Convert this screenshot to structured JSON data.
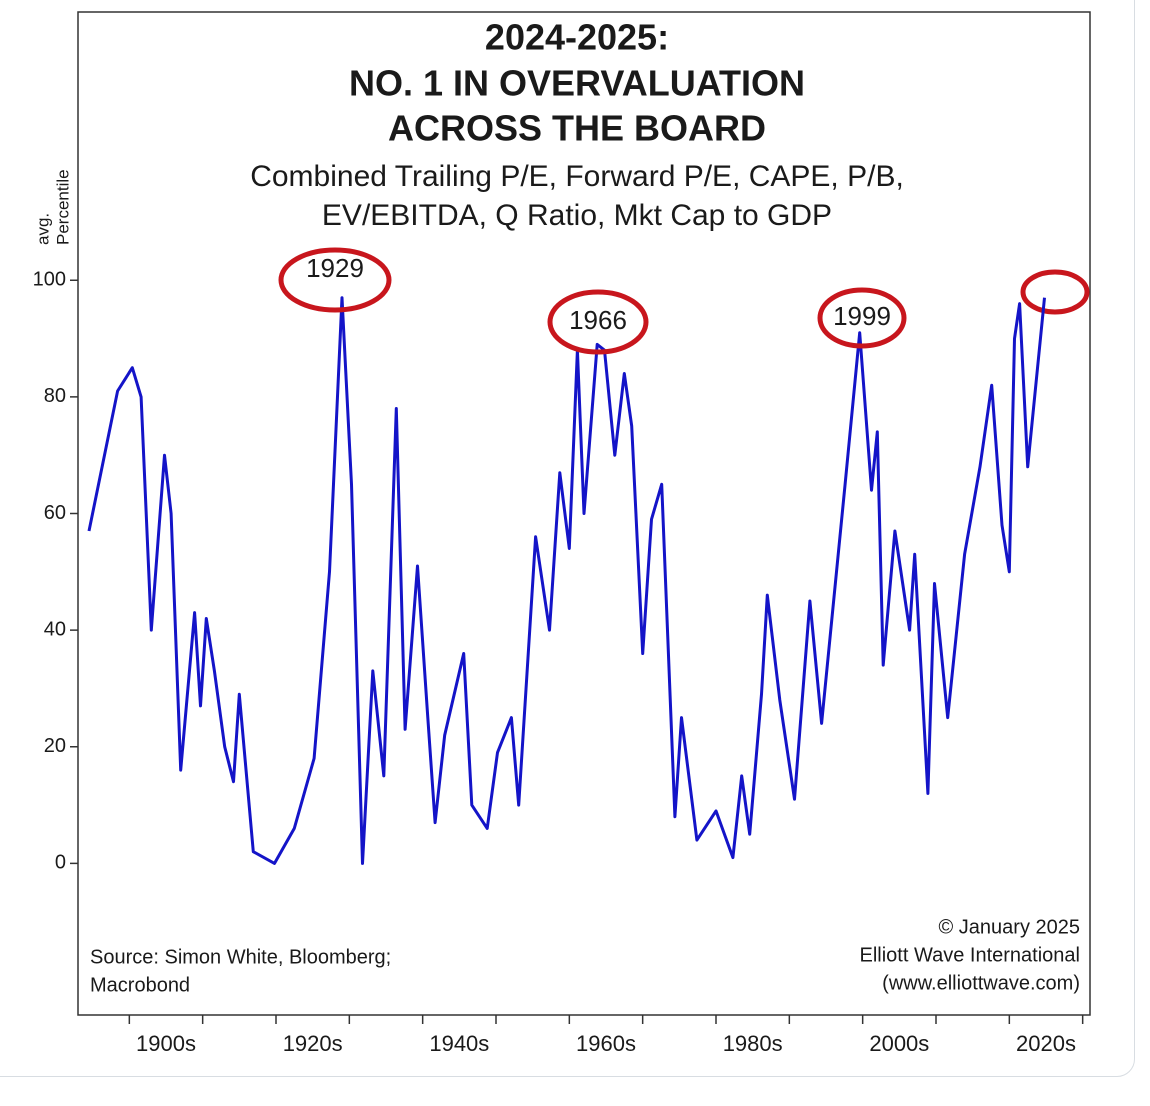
{
  "chart_data": {
    "type": "line",
    "title": [
      "2024-2025:",
      "NO. 1 IN OVERVALUATION",
      "ACROSS THE BOARD"
    ],
    "subtitle": [
      "Combined Trailing P/E, Forward P/E, CAPE, P/B,",
      "EV/EBITDA, Q Ratio, Mkt Cap to GDP"
    ],
    "y_label": [
      "avg.",
      "Percentile"
    ],
    "source": [
      "Source: Simon White, Bloomberg;",
      "Macrobond"
    ],
    "credit": [
      "© January 2025",
      "Elliott Wave International",
      "(www.elliottwave.com)"
    ],
    "annotations": [
      {
        "text": "1929"
      },
      {
        "text": "1966"
      },
      {
        "text": "1999"
      }
    ],
    "xlim": [
      1893,
      2031
    ],
    "ylim": [
      -26,
      146
    ],
    "yticks": [
      0,
      20,
      40,
      60,
      80,
      100
    ],
    "xticks": [
      {
        "value": 1905,
        "label": "1900s"
      },
      {
        "value": 1925,
        "label": "1920s"
      },
      {
        "value": 1945,
        "label": "1940s"
      },
      {
        "value": 1965,
        "label": "1960s"
      },
      {
        "value": 1985,
        "label": "1980s"
      },
      {
        "value": 2005,
        "label": "2000s"
      },
      {
        "value": 2025,
        "label": "2020s"
      }
    ],
    "xminorticks": [
      1900,
      1910,
      1920,
      1930,
      1940,
      1950,
      1960,
      1970,
      1980,
      1990,
      2000,
      2010,
      2020,
      2030
    ],
    "series": [
      {
        "color": "#1414c8",
        "x": [
          1894.5,
          1898.4,
          1900.4,
          1901.6,
          1903.0,
          1904.8,
          1905.7,
          1907.0,
          1908.9,
          1909.7,
          1910.5,
          1911.6,
          1913.0,
          1914.2,
          1915.0,
          1916.9,
          1919.8,
          1922.5,
          1925.2,
          1927.3,
          1929.0,
          1930.3,
          1931.8,
          1933.2,
          1934.7,
          1936.4,
          1937.6,
          1939.3,
          1940.7,
          1941.7,
          1943.0,
          1945.6,
          1946.7,
          1948.8,
          1950.2,
          1952.1,
          1953.1,
          1955.4,
          1957.3,
          1958.7,
          1960.0,
          1961.1,
          1962.0,
          1963.8,
          1964.8,
          1966.2,
          1967.5,
          1968.5,
          1970.0,
          1971.2,
          1972.6,
          1974.4,
          1975.3,
          1977.4,
          1980.0,
          1982.3,
          1983.5,
          1984.6,
          1986.2,
          1987.0,
          1988.7,
          1990.7,
          1992.8,
          1994.4,
          1997.6,
          1999.6,
          2001.2,
          2002.0,
          2002.8,
          2004.4,
          2006.4,
          2007.1,
          2008.9,
          2009.8,
          2011.6,
          2013.9,
          2016.0,
          2017.6,
          2019.0,
          2020.0,
          2020.7,
          2021.4,
          2022.5,
          2024.8
        ],
        "values": [
          57,
          81,
          85,
          80,
          40,
          70,
          60,
          16,
          43,
          27,
          42,
          33,
          20,
          14,
          29,
          2,
          0,
          6,
          18,
          50,
          97,
          65,
          0,
          33,
          15,
          78,
          23,
          51,
          25,
          7,
          22,
          36,
          10,
          6,
          19,
          25,
          10,
          56,
          40,
          67,
          54,
          88,
          60,
          89,
          88,
          70,
          84,
          75,
          36,
          59,
          65,
          8,
          25,
          4,
          9,
          1,
          15,
          5,
          29,
          46,
          28,
          11,
          45,
          24,
          65,
          91,
          64,
          74,
          34,
          57,
          40,
          53,
          12,
          48,
          25,
          53,
          68,
          82,
          58,
          50,
          90,
          96,
          68,
          97
        ]
      }
    ]
  }
}
